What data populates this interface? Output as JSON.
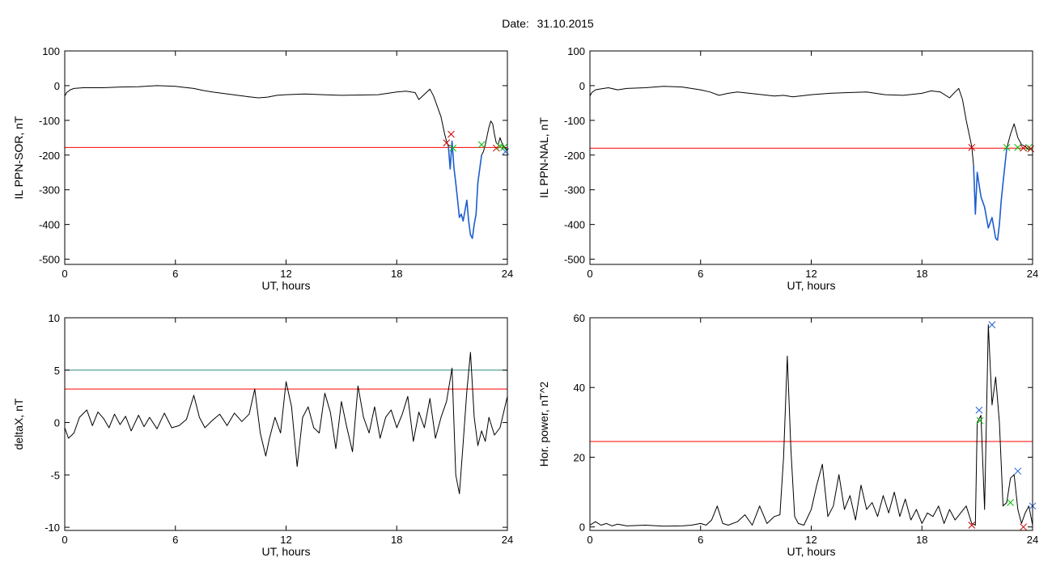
{
  "header": {
    "date_label": "Date:",
    "date_value": "31.10.2015"
  },
  "chart_data": [
    {
      "id": "sor",
      "type": "line",
      "xlabel": "UT, hours",
      "ylabel": "IL PPN-SOR, nT",
      "xlim": [
        0,
        24
      ],
      "ylim": [
        -515,
        100
      ],
      "xticks": [
        0,
        6,
        12,
        18,
        24
      ],
      "yticks": [
        100,
        0,
        -100,
        -200,
        -300,
        -400,
        -500
      ],
      "threshold": {
        "value": -178,
        "color": "#ff0000"
      },
      "series": [
        {
          "color": "#000000",
          "x": [
            0,
            0.1,
            0.3,
            0.5,
            1,
            2,
            3,
            4,
            5,
            6,
            6.5,
            7,
            7.5,
            8,
            9,
            10,
            10.5,
            11,
            11.5,
            12,
            13,
            14,
            15,
            16,
            17,
            18,
            18.5,
            19,
            19.2,
            19.4,
            19.6,
            19.8,
            20,
            20.2,
            20.4,
            20.6,
            20.7,
            20.8,
            20.9,
            21,
            21.1,
            21.2,
            21.3,
            21.4,
            21.5,
            21.6,
            21.8,
            21.9,
            22,
            22.1,
            22.2,
            22.3,
            22.4,
            22.5,
            22.6,
            22.7,
            22.8,
            22.9,
            23,
            23.1,
            23.2,
            23.3,
            23.4,
            23.5,
            23.6,
            23.7,
            23.8,
            24
          ],
          "y": [
            -30,
            -20,
            -12,
            -8,
            -6,
            -6,
            -4,
            -3,
            0,
            -2,
            -5,
            -8,
            -14,
            -18,
            -25,
            -32,
            -35,
            -33,
            -28,
            -26,
            -24,
            -26,
            -28,
            -27,
            -26,
            -18,
            -16,
            -20,
            -40,
            -30,
            -20,
            -10,
            -30,
            -60,
            -90,
            -140,
            -160,
            -175,
            -240,
            -160,
            -235,
            -280,
            -330,
            -380,
            -370,
            -390,
            -330,
            -390,
            -430,
            -440,
            -400,
            -370,
            -280,
            -240,
            -200,
            -190,
            -170,
            -145,
            -120,
            -102,
            -110,
            -140,
            -165,
            -170,
            -150,
            -165,
            -175,
            -185
          ]
        },
        {
          "color": "#1e5fd0",
          "x": [
            20.8,
            20.9,
            21,
            21.1,
            21.2,
            21.3,
            21.4,
            21.5,
            21.6,
            21.8,
            21.9,
            22,
            22.1,
            22.2,
            22.3,
            22.4,
            22.5,
            22.6
          ],
          "y": [
            -175,
            -240,
            -160,
            -235,
            -280,
            -330,
            -380,
            -370,
            -390,
            -330,
            -390,
            -430,
            -440,
            -400,
            -370,
            -280,
            -240,
            -200
          ]
        }
      ],
      "markers": [
        {
          "x": 20.7,
          "y": -165,
          "color": "#cc0000"
        },
        {
          "x": 20.95,
          "y": -140,
          "color": "#cc0000"
        },
        {
          "x": 21.05,
          "y": -180,
          "color": "#00bb00"
        },
        {
          "x": 22.6,
          "y": -170,
          "color": "#00bb00"
        },
        {
          "x": 23.4,
          "y": -180,
          "color": "#cc0000"
        },
        {
          "x": 23.6,
          "y": -175,
          "color": "#00bb00"
        },
        {
          "x": 23.8,
          "y": -178,
          "color": "#00bb00"
        },
        {
          "x": 23.9,
          "y": -190,
          "color": "#1e5fd0"
        }
      ]
    },
    {
      "id": "nal",
      "type": "line",
      "xlabel": "UT, hours",
      "ylabel": "IL PPN-NAL, nT",
      "xlim": [
        0,
        24
      ],
      "ylim": [
        -515,
        100
      ],
      "xticks": [
        0,
        6,
        12,
        18,
        24
      ],
      "yticks": [
        100,
        0,
        -100,
        -200,
        -300,
        -400,
        -500
      ],
      "threshold": {
        "value": -180,
        "color": "#ff0000"
      },
      "series": [
        {
          "color": "#000000",
          "x": [
            0,
            0.1,
            0.3,
            0.5,
            1,
            1.5,
            2,
            3,
            4,
            5,
            6,
            6.5,
            7,
            7.5,
            8,
            9,
            10,
            10.5,
            11,
            12,
            13,
            14,
            15,
            16,
            17,
            18,
            18.5,
            19,
            19.5,
            19.8,
            20,
            20.2,
            20.4,
            20.6,
            20.7,
            20.8,
            20.9,
            21,
            21.2,
            21.4,
            21.6,
            21.8,
            22,
            22.1,
            22.2,
            22.3,
            22.4,
            22.6,
            22.8,
            23,
            23.2,
            23.4,
            23.6,
            23.8,
            24
          ],
          "y": [
            -30,
            -20,
            -12,
            -10,
            -6,
            -12,
            -8,
            -6,
            -2,
            -4,
            -12,
            -18,
            -28,
            -22,
            -18,
            -24,
            -30,
            -28,
            -32,
            -26,
            -22,
            -20,
            -18,
            -26,
            -28,
            -22,
            -15,
            -18,
            -35,
            -18,
            -8,
            -40,
            -100,
            -150,
            -175,
            -230,
            -370,
            -250,
            -320,
            -350,
            -410,
            -380,
            -440,
            -445,
            -400,
            -330,
            -280,
            -180,
            -140,
            -110,
            -150,
            -170,
            -175,
            -185,
            -178
          ]
        },
        {
          "color": "#1e5fd0",
          "x": [
            20.8,
            20.9,
            21,
            21.2,
            21.4,
            21.6,
            21.8,
            22,
            22.1,
            22.2,
            22.3,
            22.4,
            22.6
          ],
          "y": [
            -230,
            -370,
            -250,
            -320,
            -350,
            -410,
            -380,
            -440,
            -445,
            -400,
            -330,
            -280,
            -180
          ]
        }
      ],
      "markers": [
        {
          "x": 20.7,
          "y": -178,
          "color": "#cc0000"
        },
        {
          "x": 22.6,
          "y": -178,
          "color": "#00bb00"
        },
        {
          "x": 23.2,
          "y": -178,
          "color": "#00bb00"
        },
        {
          "x": 23.5,
          "y": -180,
          "color": "#cc0000"
        },
        {
          "x": 23.8,
          "y": -178,
          "color": "#00bb00"
        },
        {
          "x": 23.9,
          "y": -182,
          "color": "#cc0000"
        }
      ]
    },
    {
      "id": "deltax",
      "type": "line",
      "xlabel": "UT, hours",
      "ylabel": "deltaX, nT",
      "xlim": [
        0,
        24
      ],
      "ylim": [
        -10.3,
        10
      ],
      "xticks": [
        0,
        6,
        12,
        18,
        24
      ],
      "yticks": [
        10,
        5,
        0,
        -5,
        -10
      ],
      "hlines": [
        {
          "value": 5,
          "color": "#2e8b7a"
        },
        {
          "value": 3.2,
          "color": "#ff0000"
        }
      ],
      "series": [
        {
          "color": "#000000",
          "x": [
            0,
            0.2,
            0.5,
            0.8,
            1.2,
            1.5,
            1.8,
            2.1,
            2.4,
            2.7,
            3,
            3.3,
            3.6,
            4,
            4.3,
            4.6,
            5,
            5.4,
            5.8,
            6.2,
            6.6,
            7,
            7.3,
            7.6,
            8,
            8.4,
            8.8,
            9.2,
            9.6,
            10,
            10.3,
            10.6,
            10.9,
            11.1,
            11.4,
            11.7,
            12,
            12.3,
            12.6,
            12.9,
            13.2,
            13.5,
            13.8,
            14.1,
            14.4,
            14.7,
            15,
            15.3,
            15.6,
            15.9,
            16.2,
            16.5,
            16.8,
            17.1,
            17.4,
            17.7,
            18,
            18.3,
            18.6,
            18.9,
            19.2,
            19.5,
            19.8,
            20.1,
            20.4,
            20.7,
            21,
            21.2,
            21.4,
            21.6,
            21.8,
            22,
            22.2,
            22.4,
            22.6,
            22.8,
            23,
            23.3,
            23.6,
            24
          ],
          "y": [
            -0.5,
            -1.5,
            -1,
            0.5,
            1.2,
            -0.3,
            1,
            0.4,
            -0.5,
            0.8,
            -0.2,
            0.6,
            -0.8,
            0.7,
            -0.4,
            0.5,
            -0.6,
            0.9,
            -0.5,
            -0.3,
            0.3,
            2.6,
            0.5,
            -0.5,
            0.2,
            0.8,
            -0.3,
            0.9,
            0.1,
            0.8,
            3.2,
            -1,
            -3.2,
            -1.5,
            0.5,
            -1,
            3.9,
            1.5,
            -4.2,
            0.5,
            1.5,
            -0.5,
            -1,
            2.8,
            1,
            -2.5,
            2,
            -0.5,
            -2.8,
            3.5,
            0.5,
            -1,
            1.5,
            -1.5,
            0.5,
            1.2,
            -0.5,
            0.8,
            2.5,
            -1.8,
            1,
            -0.5,
            2.3,
            -1.5,
            0.5,
            2,
            5.2,
            -5,
            -6.8,
            -2,
            3,
            6.7,
            0.5,
            -2.2,
            -0.8,
            -1.8,
            0.5,
            -1.2,
            -0.5,
            2.5
          ]
        }
      ]
    },
    {
      "id": "power",
      "type": "line",
      "xlabel": "UT, hours",
      "ylabel": "Hor. power, nT^2",
      "xlim": [
        0,
        24
      ],
      "ylim": [
        -1,
        60
      ],
      "xticks": [
        0,
        6,
        12,
        18,
        24
      ],
      "yticks": [
        0,
        20,
        40,
        60
      ],
      "threshold": {
        "value": 24.5,
        "color": "#ff0000"
      },
      "series": [
        {
          "color": "#000000",
          "x": [
            0,
            0.3,
            0.6,
            0.9,
            1.2,
            1.5,
            2,
            3,
            4,
            5,
            5.5,
            6,
            6.3,
            6.6,
            6.9,
            7.2,
            7.5,
            8,
            8.4,
            8.8,
            9.2,
            9.6,
            10,
            10.3,
            10.5,
            10.7,
            10.9,
            11.1,
            11.3,
            11.6,
            12,
            12.3,
            12.6,
            12.9,
            13.2,
            13.5,
            13.8,
            14.1,
            14.4,
            14.7,
            15,
            15.3,
            15.6,
            15.9,
            16.2,
            16.5,
            16.8,
            17.1,
            17.4,
            17.7,
            18,
            18.3,
            18.6,
            18.9,
            19.2,
            19.5,
            19.8,
            20.1,
            20.4,
            20.7,
            20.9,
            21,
            21.2,
            21.4,
            21.6,
            21.8,
            22,
            22.2,
            22.4,
            22.6,
            22.8,
            23,
            23.2,
            23.4,
            23.6,
            23.8,
            24
          ],
          "y": [
            0.5,
            1.5,
            0.5,
            1,
            0.3,
            0.8,
            0.3,
            0.5,
            0.2,
            0.3,
            0.5,
            1,
            0.5,
            2,
            6,
            1,
            0.5,
            1.5,
            3.5,
            0.5,
            6,
            1,
            3,
            3.5,
            20,
            49,
            22,
            3,
            1,
            0.5,
            5,
            12,
            18,
            3,
            6,
            15,
            5,
            9,
            2,
            12,
            5,
            7,
            3,
            9,
            4,
            10,
            3,
            8,
            2,
            5,
            1,
            4,
            3,
            6,
            1,
            5,
            2,
            4,
            6,
            1,
            0.5,
            30,
            32,
            5,
            58,
            35,
            43,
            30,
            6,
            7,
            14,
            15,
            5,
            1,
            4,
            6,
            0.5
          ]
        }
      ],
      "markers": [
        {
          "x": 20.7,
          "y": 0.5,
          "color": "#cc0000"
        },
        {
          "x": 21.1,
          "y": 33.5,
          "color": "#1e5fd0"
        },
        {
          "x": 21.15,
          "y": 30.5,
          "color": "#00bb00"
        },
        {
          "x": 21.8,
          "y": 58,
          "color": "#1e5fd0"
        },
        {
          "x": 22.8,
          "y": 7,
          "color": "#00bb00"
        },
        {
          "x": 23.2,
          "y": 16,
          "color": "#1e5fd0"
        },
        {
          "x": 23.5,
          "y": 0,
          "color": "#cc0000"
        },
        {
          "x": 24,
          "y": 6,
          "color": "#1e5fd0"
        }
      ]
    }
  ]
}
